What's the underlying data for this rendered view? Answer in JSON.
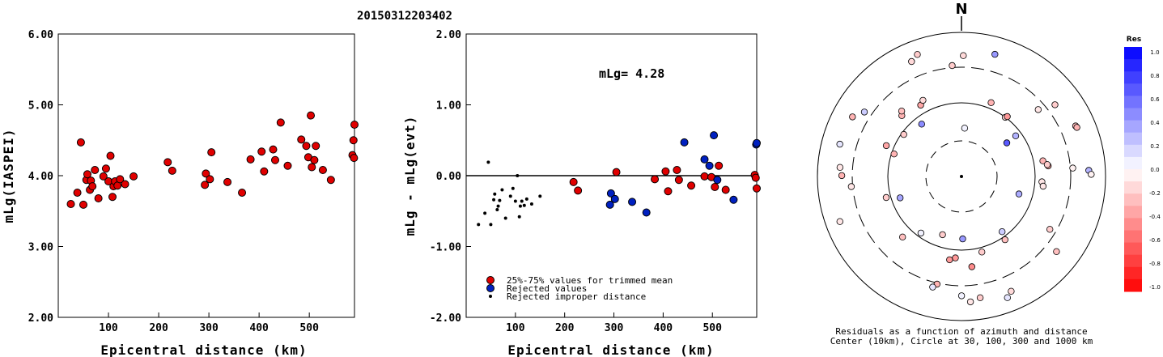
{
  "title": "20150312203402",
  "chart_data": [
    {
      "type": "scatter",
      "name": "left",
      "xlabel": "Epicentral distance (km)",
      "ylabel": "mLg(IASPEI)",
      "xlim": [
        0,
        590
      ],
      "ylim": [
        2.0,
        6.0
      ],
      "xticks": [
        "100",
        "200",
        "300",
        "400",
        "500"
      ],
      "yticks": [
        "2.00",
        "3.00",
        "4.00",
        "5.00",
        "6.00"
      ],
      "points": [
        [
          25,
          3.6
        ],
        [
          38,
          3.76
        ],
        [
          45,
          4.47
        ],
        [
          50,
          3.59
        ],
        [
          56,
          3.94
        ],
        [
          58,
          4.02
        ],
        [
          63,
          3.8
        ],
        [
          65,
          3.93
        ],
        [
          68,
          3.85
        ],
        [
          73,
          4.08
        ],
        [
          80,
          3.68
        ],
        [
          90,
          3.99
        ],
        [
          95,
          4.1
        ],
        [
          100,
          3.92
        ],
        [
          104,
          4.28
        ],
        [
          108,
          3.7
        ],
        [
          110,
          3.85
        ],
        [
          113,
          3.92
        ],
        [
          118,
          3.86
        ],
        [
          123,
          3.95
        ],
        [
          133,
          3.88
        ],
        [
          150,
          3.99
        ],
        [
          218,
          4.19
        ],
        [
          227,
          4.07
        ],
        [
          292,
          3.87
        ],
        [
          294,
          4.03
        ],
        [
          302,
          3.95
        ],
        [
          305,
          4.33
        ],
        [
          337,
          3.91
        ],
        [
          366,
          3.76
        ],
        [
          383,
          4.23
        ],
        [
          405,
          4.34
        ],
        [
          410,
          4.06
        ],
        [
          428,
          4.37
        ],
        [
          432,
          4.22
        ],
        [
          443,
          4.75
        ],
        [
          457,
          4.14
        ],
        [
          484,
          4.51
        ],
        [
          494,
          4.42
        ],
        [
          498,
          4.26
        ],
        [
          503,
          4.85
        ],
        [
          505,
          4.12
        ],
        [
          510,
          4.22
        ],
        [
          513,
          4.42
        ],
        [
          527,
          4.08
        ],
        [
          543,
          3.94
        ],
        [
          586,
          4.29
        ],
        [
          588,
          4.5
        ],
        [
          589,
          4.25
        ],
        [
          590,
          4.72
        ]
      ]
    },
    {
      "type": "scatter",
      "name": "right",
      "xlabel": "Epicentral distance (km)",
      "ylabel": "mLg - mLg(evt)",
      "xlim": [
        0,
        590
      ],
      "ylim": [
        -2.0,
        2.0
      ],
      "xticks": [
        "100",
        "200",
        "300",
        "400",
        "500"
      ],
      "yticks": [
        "-2.00",
        "-1.00",
        "0.00",
        "1.00",
        "2.00"
      ],
      "annotation": "mLg= 4.28",
      "legend": [
        "25%-75% values for trimmed mean",
        "Rejected values",
        "Rejected improper distance"
      ],
      "trimmed": [
        [
          218,
          -0.09
        ],
        [
          227,
          -0.21
        ],
        [
          305,
          0.05
        ],
        [
          383,
          -0.05
        ],
        [
          405,
          0.06
        ],
        [
          410,
          -0.22
        ],
        [
          428,
          0.08
        ],
        [
          432,
          -0.06
        ],
        [
          457,
          -0.14
        ],
        [
          484,
          -0.01
        ],
        [
          498,
          -0.02
        ],
        [
          505,
          -0.16
        ],
        [
          513,
          0.14
        ],
        [
          527,
          -0.2
        ],
        [
          586,
          0.01
        ],
        [
          588,
          -0.03
        ],
        [
          590,
          -0.18
        ]
      ],
      "rejected": [
        [
          292,
          -0.41
        ],
        [
          294,
          -0.25
        ],
        [
          302,
          -0.33
        ],
        [
          337,
          -0.37
        ],
        [
          366,
          -0.52
        ],
        [
          443,
          0.47
        ],
        [
          484,
          0.23
        ],
        [
          494,
          0.14
        ],
        [
          503,
          0.57
        ],
        [
          510,
          -0.06
        ],
        [
          543,
          -0.34
        ],
        [
          589,
          0.44
        ],
        [
          590,
          0.46
        ]
      ],
      "improper": [
        [
          25,
          -0.69
        ],
        [
          38,
          -0.53
        ],
        [
          45,
          0.19
        ],
        [
          50,
          -0.69
        ],
        [
          56,
          -0.34
        ],
        [
          58,
          -0.26
        ],
        [
          63,
          -0.48
        ],
        [
          65,
          -0.43
        ],
        [
          68,
          -0.35
        ],
        [
          73,
          -0.2
        ],
        [
          80,
          -0.6
        ],
        [
          90,
          -0.29
        ],
        [
          95,
          -0.18
        ],
        [
          100,
          -0.36
        ],
        [
          104,
          0.0
        ],
        [
          108,
          -0.58
        ],
        [
          110,
          -0.43
        ],
        [
          113,
          -0.36
        ],
        [
          118,
          -0.42
        ],
        [
          123,
          -0.33
        ],
        [
          133,
          -0.4
        ],
        [
          150,
          -0.29
        ]
      ]
    },
    {
      "type": "scatter",
      "name": "polar",
      "north_label": "N",
      "caption": [
        "Residuals as a function of azimuth and distance",
        "Center (10km), Circle at 30, 100, 300 and 1000 km"
      ],
      "colorbar": {
        "title": "Res",
        "labels": [
          "1.0",
          "0.8",
          "0.6",
          "0.4",
          "0.2",
          "0.0",
          "-0.2",
          "-0.4",
          "-0.6",
          "-0.8",
          "-1.0"
        ]
      },
      "points": [
        [
          1,
          0.05
        ],
        [
          5,
          0.65
        ],
        [
          10,
          0.33
        ],
        [
          20,
          0.4
        ],
        [
          30,
          0.35
        ],
        [
          40,
          0.45
        ],
        [
          55,
          0.3
        ],
        [
          70,
          0.2
        ],
        [
          80,
          0.05
        ],
        [
          95,
          -0.2
        ],
        [
          110,
          -0.15
        ],
        [
          130,
          -0.25
        ],
        [
          150,
          -0.2
        ],
        [
          175,
          -0.3
        ],
        [
          185,
          -0.1
        ],
        [
          200,
          -0.4
        ],
        [
          230,
          -0.35
        ],
        [
          250,
          -0.3
        ],
        [
          270,
          -0.4
        ],
        [
          295,
          -0.3
        ],
        [
          320,
          -0.35
        ],
        [
          335,
          -0.45
        ],
        [
          0,
          -0.1
        ],
        [
          10,
          -0.2
        ],
        [
          20,
          -0.3
        ],
        [
          30,
          -0.1
        ],
        [
          45,
          -0.2
        ],
        [
          60,
          -0.05
        ],
        [
          80,
          0.1
        ],
        [
          100,
          0.2
        ],
        [
          120,
          -0.2
        ],
        [
          145,
          0.05
        ],
        [
          160,
          -0.3
        ],
        [
          175,
          -0.15
        ],
        [
          200,
          -0.25
        ],
        [
          230,
          -0.1
        ],
        [
          290,
          -0.2
        ],
        [
          315,
          -0.3
        ],
        [
          340,
          -0.25
        ],
        [
          355,
          -0.15
        ],
        [
          5,
          -0.15
        ],
        [
          20,
          -0.3
        ],
        [
          40,
          -0.1
        ],
        [
          60,
          0.1
        ],
        [
          75,
          0.4
        ],
        [
          85,
          0.3
        ],
        [
          95,
          0.1
        ],
        [
          110,
          -0.1
        ],
        [
          125,
          -0.2
        ],
        [
          145,
          -0.05
        ],
        [
          165,
          -0.2
        ],
        [
          180,
          -0.3
        ],
        [
          200,
          -0.4
        ],
        [
          225,
          -0.2
        ],
        [
          250,
          -0.35
        ],
        [
          285,
          -0.1
        ],
        [
          310,
          -0.25
        ],
        [
          330,
          -0.15
        ],
        [
          350,
          -0.2
        ],
        [
          15,
          -0.25
        ]
      ]
    }
  ]
}
